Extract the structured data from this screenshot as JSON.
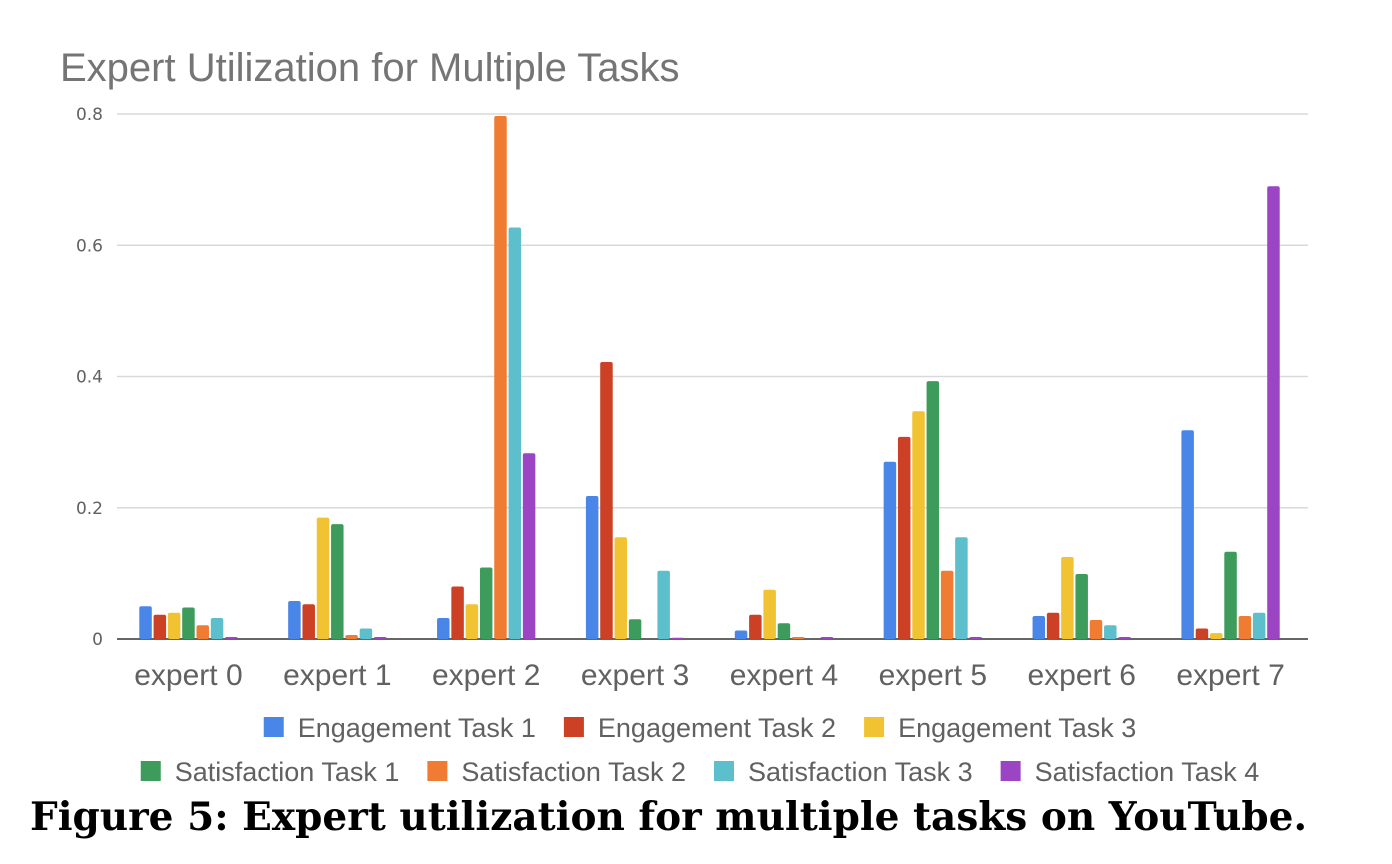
{
  "chart_data": {
    "type": "bar",
    "title": "Expert Utilization for Multiple Tasks",
    "categories": [
      "expert 0",
      "expert 1",
      "expert 2",
      "expert 3",
      "expert 4",
      "expert 5",
      "expert 6",
      "expert 7"
    ],
    "series": [
      {
        "name": "Engagement Task 1",
        "color": "#4a86e8",
        "values": [
          0.05,
          0.058,
          0.032,
          0.218,
          0.013,
          0.27,
          0.035,
          0.318
        ]
      },
      {
        "name": "Engagement Task 2",
        "color": "#cc4125",
        "values": [
          0.037,
          0.053,
          0.08,
          0.422,
          0.037,
          0.308,
          0.04,
          0.016
        ]
      },
      {
        "name": "Engagement Task 3",
        "color": "#f1c232",
        "values": [
          0.04,
          0.185,
          0.053,
          0.155,
          0.075,
          0.347,
          0.125,
          0.009
        ]
      },
      {
        "name": "Satisfaction Task 1",
        "color": "#3d9c5c",
        "values": [
          0.048,
          0.175,
          0.109,
          0.03,
          0.024,
          0.393,
          0.099,
          0.133
        ]
      },
      {
        "name": "Satisfaction Task 2",
        "color": "#f07c34",
        "values": [
          0.021,
          0.006,
          0.797,
          0.0,
          0.003,
          0.104,
          0.029,
          0.035
        ]
      },
      {
        "name": "Satisfaction Task 3",
        "color": "#5ebfcc",
        "values": [
          0.032,
          0.016,
          0.627,
          0.104,
          0.0,
          0.155,
          0.021,
          0.04
        ]
      },
      {
        "name": "Satisfaction Task 4",
        "color": "#9b45c4",
        "values": [
          0.003,
          0.003,
          0.283,
          0.002,
          0.003,
          0.003,
          0.003,
          0.69
        ]
      }
    ],
    "yticks": [
      "0",
      "0.2",
      "0.4",
      "0.6",
      "0.8"
    ],
    "ylim": [
      0,
      0.8
    ],
    "grid": true,
    "legend_position": "bottom"
  },
  "caption": "Figure 5: Expert utilization for multiple tasks on YouTube."
}
